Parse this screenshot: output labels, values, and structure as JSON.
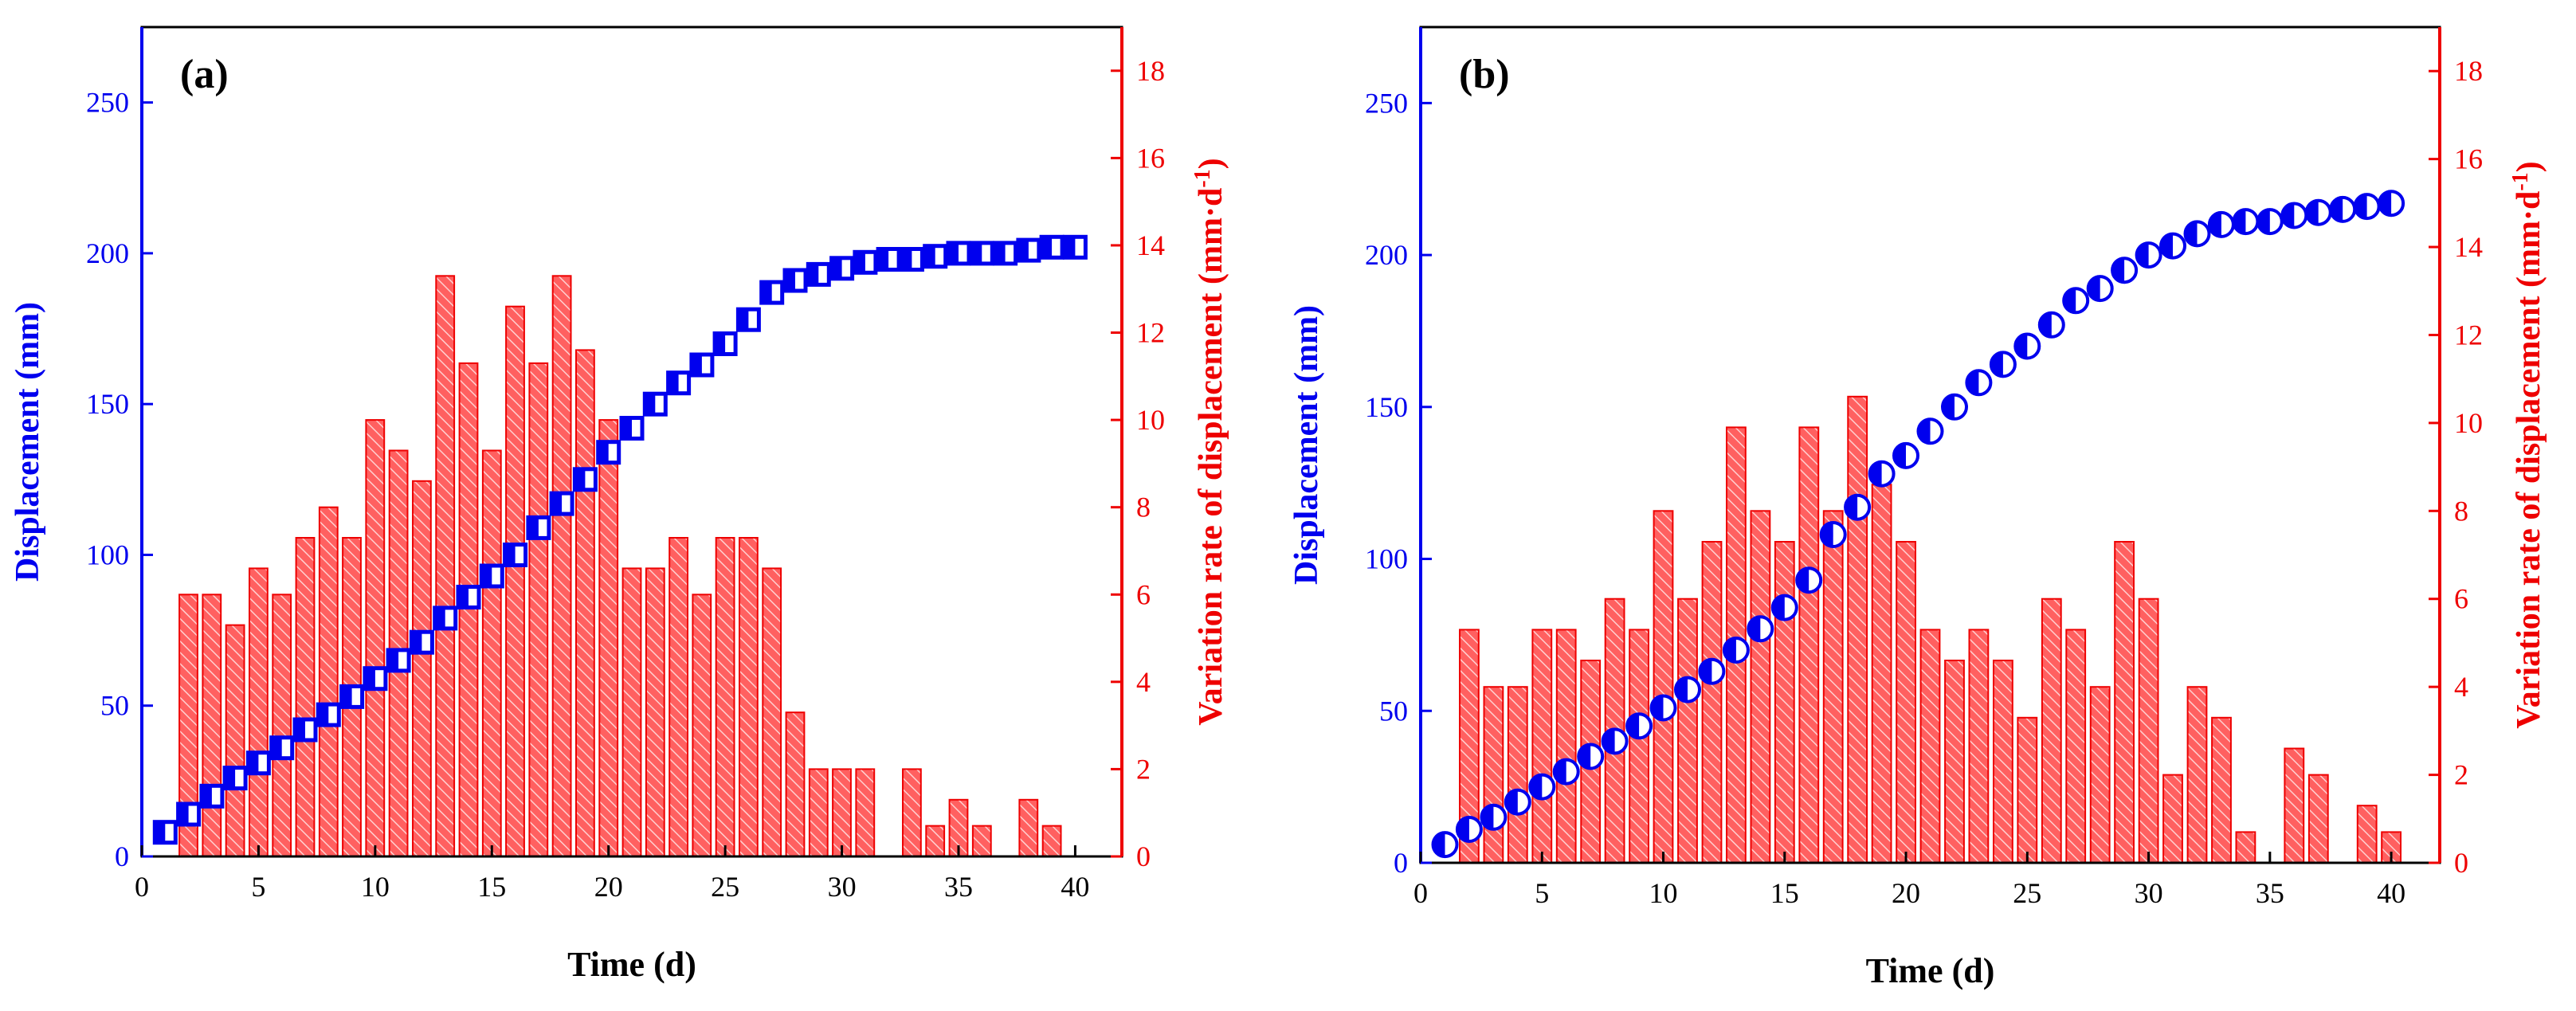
{
  "colors": {
    "displacement": "#0000ee",
    "rate": "#ee0000",
    "rate_fill": "#ff5050",
    "axis": "#000000"
  },
  "chart_data": [
    {
      "panel": "(a)",
      "type": "bar+scatter",
      "xlabel": "Time (d)",
      "ylabel_left": "Displacement (mm)",
      "ylabel_right": "Variation rate of displacement (mm·d",
      "ylabel_right_sup": "-1",
      "ylabel_right_tail": ")",
      "xlim": [
        0,
        42
      ],
      "xticks": [
        0,
        5,
        10,
        15,
        20,
        25,
        30,
        35,
        40
      ],
      "ylim_left": [
        0,
        275
      ],
      "yticks_left": [
        0,
        50,
        100,
        150,
        200,
        250
      ],
      "ylim_right": [
        0,
        19
      ],
      "yticks_right": [
        0,
        2,
        4,
        6,
        8,
        10,
        12,
        14,
        16,
        18
      ],
      "marker": "half-filled-square",
      "series": [
        {
          "name": "Displacement (mm)",
          "axis": "left",
          "x": [
            1,
            2,
            3,
            4,
            5,
            6,
            7,
            8,
            9,
            10,
            11,
            12,
            13,
            14,
            15,
            16,
            17,
            18,
            19,
            20,
            21,
            22,
            23,
            24,
            25,
            26,
            27,
            28,
            29,
            30,
            31,
            32,
            33,
            34,
            35,
            36,
            37,
            38,
            39,
            40
          ],
          "values": [
            8,
            14,
            20,
            26,
            31,
            36,
            42,
            47,
            53,
            59,
            65,
            71,
            79,
            86,
            93,
            100,
            109,
            117,
            125,
            134,
            142,
            150,
            157,
            163,
            170,
            178,
            187,
            191,
            193,
            195,
            197,
            198,
            198,
            199,
            200,
            200,
            200,
            201,
            202,
            202
          ]
        },
        {
          "name": "Variation rate of displacement (mm·d-1)",
          "axis": "right",
          "x": [
            2,
            3,
            4,
            5,
            6,
            7,
            8,
            9,
            10,
            11,
            12,
            13,
            14,
            15,
            16,
            17,
            18,
            19,
            20,
            21,
            22,
            23,
            24,
            25,
            26,
            27,
            28,
            29,
            30,
            31,
            33,
            34,
            35,
            36,
            38,
            39
          ],
          "values": [
            6,
            6,
            5.3,
            6.6,
            6,
            7.3,
            8,
            7.3,
            10,
            9.3,
            8.6,
            13.3,
            11.3,
            9.3,
            12.6,
            11.3,
            13.3,
            11.6,
            10,
            6.6,
            6.6,
            7.3,
            6,
            7.3,
            7.3,
            6.6,
            3.3,
            2,
            2,
            2,
            2,
            0.7,
            1.3,
            0.7,
            1.3,
            0.7
          ]
        }
      ]
    },
    {
      "panel": "(b)",
      "type": "bar+scatter",
      "xlabel": "Time (d)",
      "ylabel_left": "Displacement (mm)",
      "ylabel_right": "Variation rate of displacement (mm·d",
      "ylabel_right_sup": "-1",
      "ylabel_right_tail": ")",
      "xlim": [
        0,
        42
      ],
      "xticks": [
        0,
        5,
        10,
        15,
        20,
        25,
        30,
        35,
        40
      ],
      "ylim_left": [
        0,
        275
      ],
      "yticks_left": [
        0,
        50,
        100,
        150,
        200,
        250
      ],
      "ylim_right": [
        0,
        19
      ],
      "yticks_right": [
        0,
        2,
        4,
        6,
        8,
        10,
        12,
        14,
        16,
        18
      ],
      "marker": "half-filled-circle",
      "series": [
        {
          "name": "Displacement (mm)",
          "axis": "left",
          "x": [
            1,
            2,
            3,
            4,
            5,
            6,
            7,
            8,
            9,
            10,
            11,
            12,
            13,
            14,
            15,
            16,
            17,
            18,
            19,
            20,
            21,
            22,
            23,
            24,
            25,
            26,
            27,
            28,
            29,
            30,
            31,
            32,
            33,
            34,
            35,
            36,
            37,
            38,
            39,
            40
          ],
          "values": [
            6,
            11,
            15,
            20,
            25,
            30,
            35,
            40,
            45,
            51,
            57,
            63,
            70,
            77,
            84,
            93,
            108,
            117,
            128,
            134,
            142,
            150,
            158,
            164,
            170,
            177,
            185,
            189,
            195,
            200,
            203,
            207,
            210,
            211,
            211,
            213,
            214,
            215,
            216,
            217
          ]
        },
        {
          "name": "Variation rate of displacement (mm·d-1)",
          "axis": "right",
          "x": [
            2,
            3,
            4,
            5,
            6,
            7,
            8,
            9,
            10,
            11,
            12,
            13,
            14,
            15,
            16,
            17,
            18,
            19,
            20,
            21,
            22,
            23,
            24,
            25,
            26,
            27,
            28,
            29,
            30,
            31,
            32,
            33,
            34,
            36,
            37,
            39,
            40
          ],
          "values": [
            5.3,
            4,
            4,
            5.3,
            5.3,
            4.6,
            6,
            5.3,
            8,
            6,
            7.3,
            9.9,
            8,
            7.3,
            9.9,
            8,
            10.6,
            8.6,
            7.3,
            5.3,
            4.6,
            5.3,
            4.6,
            3.3,
            6,
            5.3,
            4,
            7.3,
            6,
            2,
            4,
            3.3,
            0.7,
            2.6,
            2,
            1.3,
            0.7
          ]
        }
      ]
    }
  ]
}
